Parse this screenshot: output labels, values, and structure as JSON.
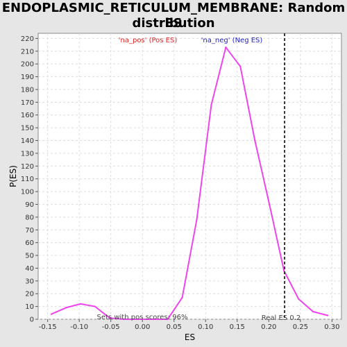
{
  "chart_data": {
    "type": "line",
    "title_line1": "ENDOPLASMIC_RETICULUM_MEMBRANE: Random ES",
    "title_line2": "distribution",
    "xlabel": "ES",
    "ylabel": "P(ES)",
    "xlim": [
      -0.165,
      0.315
    ],
    "ylim": [
      0,
      224
    ],
    "x_ticks": [
      "-0.15",
      "-0.10",
      "-0.05",
      "0.00",
      "0.05",
      "0.10",
      "0.15",
      "0.20",
      "0.25",
      "0.30"
    ],
    "x_tick_values": [
      -0.15,
      -0.1,
      -0.05,
      0.0,
      0.05,
      0.1,
      0.15,
      0.2,
      0.25,
      0.3
    ],
    "y_ticks": [
      0,
      10,
      20,
      30,
      40,
      50,
      60,
      70,
      80,
      90,
      100,
      110,
      120,
      130,
      140,
      150,
      160,
      170,
      180,
      190,
      200,
      210,
      220
    ],
    "grid": true,
    "series": [
      {
        "color": "#ee44ee",
        "x": [
          -0.144,
          -0.121,
          -0.098,
          -0.075,
          -0.052,
          -0.029,
          -0.006,
          0.017,
          0.04,
          0.063,
          0.086,
          0.109,
          0.132,
          0.155,
          0.178,
          0.201,
          0.224,
          0.247,
          0.27,
          0.293
        ],
        "y": [
          4,
          9,
          12,
          10,
          1,
          0,
          0,
          0,
          0,
          17,
          78,
          168,
          213,
          198,
          140,
          90,
          38,
          16,
          6,
          3
        ]
      }
    ],
    "real_es": 0.225,
    "real_es_label": "Real ES 0.2",
    "annotations": {
      "pos_label": "'na_pos' (Pos ES)",
      "pos_color": "#dd2222",
      "neg_label": "'na_neg' (Neg ES)",
      "neg_color": "#2222cc",
      "bottom_label": "Sets with pos scores: 96%"
    }
  }
}
